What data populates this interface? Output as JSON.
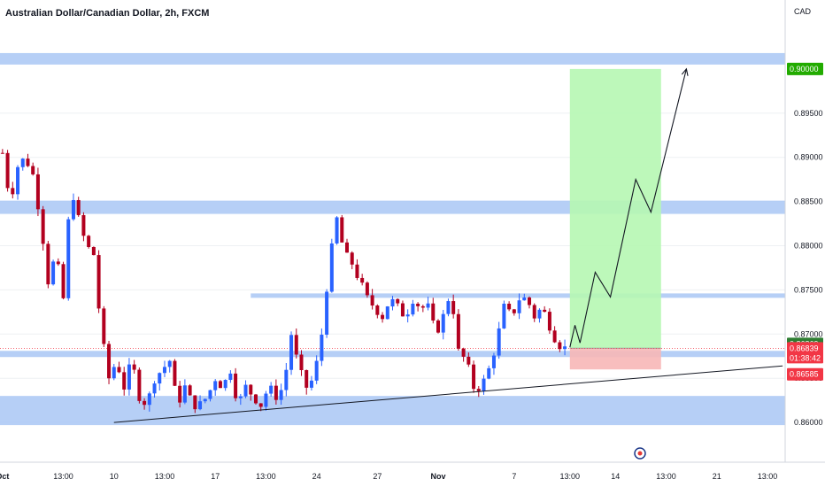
{
  "title": "Australian Dollar/Canadian Dollar, 2h, FXCM",
  "currency": "CAD",
  "colors": {
    "up": "#2962ff",
    "down": "#b2001f",
    "zone": "#a9c7f5",
    "target": "#b6f7b3",
    "stop": "#f7b7b7",
    "target_label": "#22ab00",
    "current_label": "#2e7d32",
    "stop_label": "#f23645",
    "grid": "#eef0f3"
  },
  "chart_data": {
    "type": "candlestick",
    "title": "Australian Dollar/Canadian Dollar, 2h, FXCM",
    "ylim": [
      0.8555,
      0.9048
    ],
    "y_ticks": [
      "0.86000",
      "0.86500",
      "0.87000",
      "0.87500",
      "0.88000",
      "0.88500",
      "0.89000",
      "0.89500"
    ],
    "x_ticks": [
      "Oct",
      "13:00",
      "10",
      "13:00",
      "17",
      "13:00",
      "24",
      "27",
      "Nov",
      "7",
      "13:00",
      "14",
      "13:00",
      "21",
      "13:00"
    ],
    "x_tick_index": [
      0,
      12,
      22,
      32,
      42,
      52,
      62,
      74,
      86,
      101,
      112,
      121,
      131,
      141,
      151
    ],
    "n_slots": 155,
    "price_path": [
      0.8905,
      0.885,
      0.889,
      0.89,
      0.888,
      0.883,
      0.876,
      0.879,
      0.874,
      0.887,
      0.883,
      0.88,
      0.879,
      0.87,
      0.865,
      0.867,
      0.864,
      0.867,
      0.863,
      0.862,
      0.865,
      0.866,
      0.867,
      0.862,
      0.864,
      0.862,
      0.862,
      0.863,
      0.865,
      0.864,
      0.866,
      0.862,
      0.864,
      0.863,
      0.862,
      0.864,
      0.863,
      0.864,
      0.87,
      0.866,
      0.864,
      0.865,
      0.87,
      0.878,
      0.883,
      0.879,
      0.878,
      0.876,
      0.874,
      0.873,
      0.872,
      0.874,
      0.873,
      0.872,
      0.874,
      0.873,
      0.873,
      0.87,
      0.872,
      0.875,
      0.868,
      0.867,
      0.864,
      0.864,
      0.866,
      0.869,
      0.873,
      0.872,
      0.874,
      0.874,
      0.872,
      0.873,
      0.871,
      0.869,
      0.8684
    ],
    "candle_count": 112,
    "last_price": "0.86839",
    "countdown": "01:38:42",
    "current_price": "0.86869",
    "target_price": "0.90000",
    "stop_price": "0.86585",
    "zones": [
      {
        "low": 0.9005,
        "high": 0.9018
      },
      {
        "low": 0.8836,
        "high": 0.8851
      },
      {
        "low": 0.8741,
        "high": 0.8746
      },
      {
        "low": 0.8674,
        "high": 0.8681
      },
      {
        "low": 0.8597,
        "high": 0.863
      }
    ],
    "trendline": [
      [
        22,
        0.86
      ],
      [
        154,
        0.8664
      ]
    ],
    "position": {
      "entry": 0.8684,
      "target": 0.9,
      "stop": 0.866,
      "start_index": 112,
      "end_index": 130
    },
    "projection": [
      [
        112,
        0.8685
      ],
      [
        113,
        0.871
      ],
      [
        114,
        0.869
      ],
      [
        117,
        0.877
      ],
      [
        120,
        0.8742
      ],
      [
        125,
        0.8875
      ],
      [
        128,
        0.8838
      ],
      [
        135,
        0.9
      ]
    ]
  }
}
